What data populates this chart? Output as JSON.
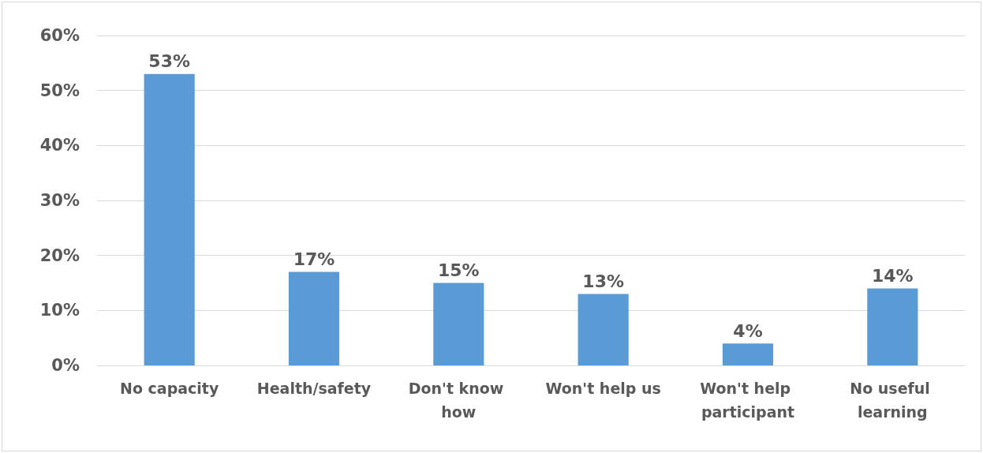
{
  "chart_data": {
    "type": "bar",
    "categories": [
      "No capacity",
      "Health/safety",
      "Don't know how",
      "Won't help us",
      "Won't help participant",
      "No useful learning"
    ],
    "values": [
      53,
      17,
      15,
      13,
      4,
      14
    ],
    "value_labels": [
      "53%",
      "17%",
      "15%",
      "13%",
      "4%",
      "14%"
    ],
    "color": "#5b9bd5",
    "ylim": [
      0,
      60
    ],
    "yticks": [
      {
        "value": 0,
        "label": "0%"
      },
      {
        "value": 10,
        "label": "10%"
      },
      {
        "value": 20,
        "label": "20%"
      },
      {
        "value": 30,
        "label": "30%"
      },
      {
        "value": 40,
        "label": "40%"
      },
      {
        "value": 50,
        "label": "50%"
      },
      {
        "value": 60,
        "label": "60%"
      }
    ],
    "grid": "y"
  }
}
